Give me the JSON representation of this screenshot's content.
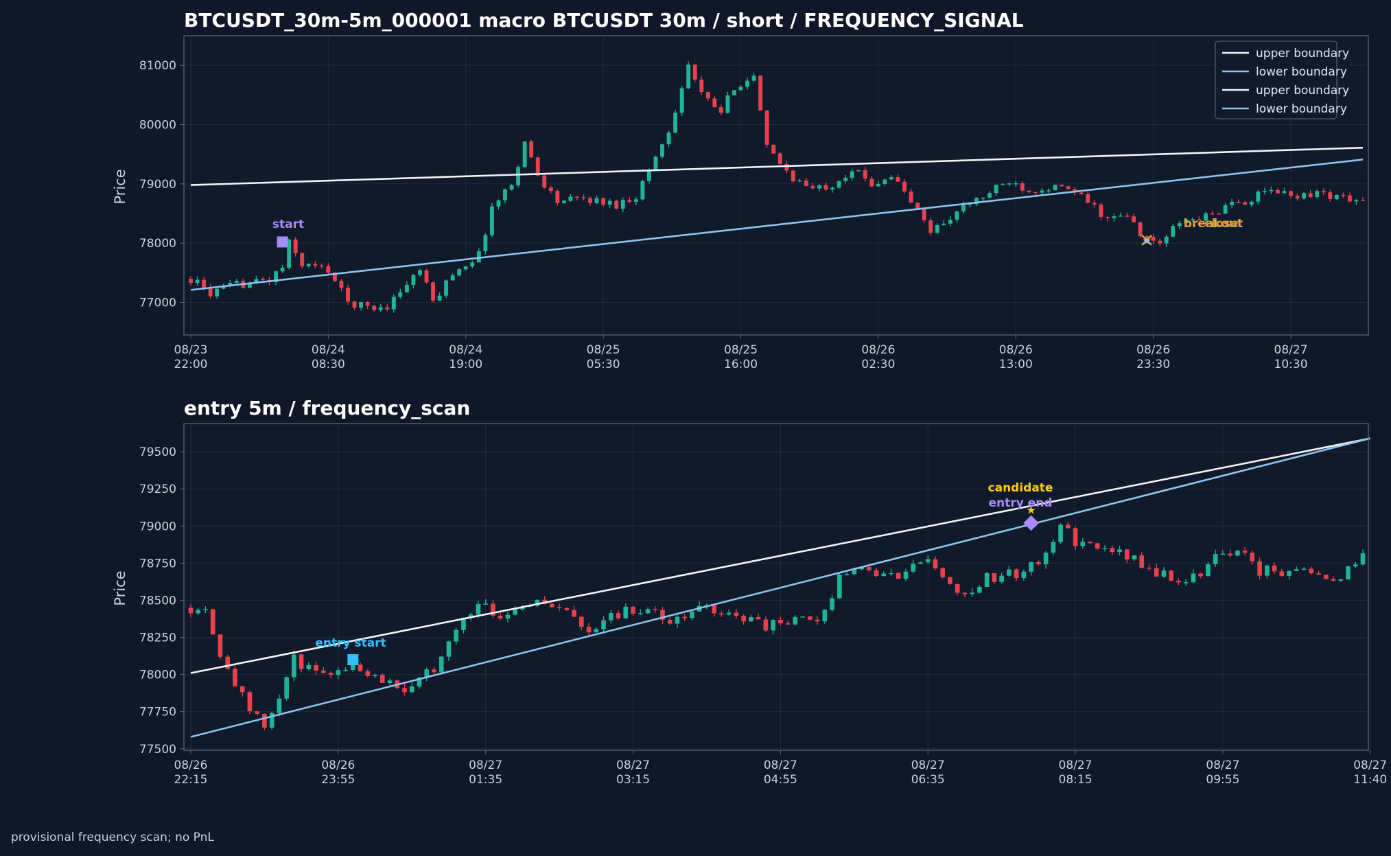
{
  "colors": {
    "background": "#0f1729",
    "plot_bg": "#111a2a",
    "grid": "#1f2a3c",
    "frame": "#5d6a7e",
    "up": "#1fb39a",
    "down": "#e5424d",
    "upper": "#f4f4f4",
    "lower": "#8ec3ef",
    "start": "#a78bfa",
    "entry_start": "#38bdf8",
    "candidate": "#facc15",
    "entry_end": "#a78bfa",
    "breakout": "#e8a33a"
  },
  "footer": "provisional frequency scan; no PnL",
  "chart_data": [
    {
      "type": "candlestick",
      "title": "BTCUSDT_30m-5m_000001 macro BTCUSDT 30m / short / FREQUENCY_SIGNAL",
      "ylabel": "Price",
      "ylim": [
        76450,
        81500
      ],
      "yticks": [
        77000,
        78000,
        79000,
        80000,
        81000
      ],
      "bars": 180,
      "xticks": [
        {
          "i": 0,
          "label": [
            "08/23",
            "22:00"
          ]
        },
        {
          "i": 21,
          "label": [
            "08/24",
            "08:30"
          ]
        },
        {
          "i": 42,
          "label": [
            "08/24",
            "19:00"
          ]
        },
        {
          "i": 63,
          "label": [
            "08/25",
            "05:30"
          ]
        },
        {
          "i": 84,
          "label": [
            "08/25",
            "16:00"
          ]
        },
        {
          "i": 105,
          "label": [
            "08/26",
            "02:30"
          ]
        },
        {
          "i": 126,
          "label": [
            "08/26",
            "13:00"
          ]
        },
        {
          "i": 147,
          "label": [
            "08/26",
            "23:30"
          ]
        },
        {
          "i": 168,
          "label": [
            "08/27",
            "10:30"
          ]
        }
      ],
      "anchors": [
        [
          0,
          77400
        ],
        [
          3,
          77150
        ],
        [
          7,
          77300
        ],
        [
          12,
          77380
        ],
        [
          14,
          77600
        ],
        [
          15,
          78000
        ],
        [
          17,
          77650
        ],
        [
          21,
          77550
        ],
        [
          24,
          77000
        ],
        [
          28,
          76900
        ],
        [
          30,
          76950
        ],
        [
          35,
          77550
        ],
        [
          37,
          77000
        ],
        [
          40,
          77500
        ],
        [
          44,
          77800
        ],
        [
          46,
          78600
        ],
        [
          49,
          79000
        ],
        [
          51,
          79700
        ],
        [
          53,
          79150
        ],
        [
          56,
          78700
        ],
        [
          60,
          78750
        ],
        [
          65,
          78650
        ],
        [
          68,
          78800
        ],
        [
          73,
          79900
        ],
        [
          76,
          81000
        ],
        [
          78,
          80500
        ],
        [
          81,
          80200
        ],
        [
          83,
          80650
        ],
        [
          86,
          80800
        ],
        [
          88,
          79600
        ],
        [
          92,
          79100
        ],
        [
          95,
          78900
        ],
        [
          98,
          79000
        ],
        [
          101,
          79250
        ],
        [
          104,
          79000
        ],
        [
          107,
          79150
        ],
        [
          110,
          78700
        ],
        [
          113,
          78200
        ],
        [
          118,
          78600
        ],
        [
          122,
          78850
        ],
        [
          125,
          79050
        ],
        [
          128,
          78900
        ],
        [
          131,
          78950
        ],
        [
          134,
          78900
        ],
        [
          137,
          78700
        ],
        [
          140,
          78400
        ],
        [
          143,
          78450
        ],
        [
          146,
          78050
        ],
        [
          148,
          78000
        ],
        [
          151,
          78350
        ],
        [
          155,
          78450
        ],
        [
          158,
          78600
        ],
        [
          162,
          78750
        ],
        [
          165,
          78900
        ],
        [
          168,
          78800
        ],
        [
          172,
          78850
        ],
        [
          179,
          78700
        ]
      ],
      "series": [
        {
          "name": "upper boundary",
          "line": [
            [
              0,
              78980
            ],
            [
              179,
              79610
            ]
          ]
        },
        {
          "name": "lower boundary",
          "line": [
            [
              0,
              77210
            ],
            [
              179,
              79410
            ]
          ]
        }
      ],
      "legend": {
        "placement": "top-right",
        "entries": [
          "upper boundary",
          "lower boundary",
          "upper boundary",
          "lower boundary"
        ]
      },
      "annotations": [
        {
          "text": "start",
          "i": 14,
          "price": 78020,
          "marker": "square",
          "color": "#a78bfa"
        },
        {
          "text": "breakout",
          "i": 146,
          "price": 78050,
          "marker": "x",
          "color": "#e8a33a"
        },
        {
          "text": "close",
          "i": 146,
          "price": 78050,
          "marker": "star",
          "color": "#8ec3ef"
        }
      ]
    },
    {
      "type": "candlestick",
      "title": "entry 5m / frequency_scan",
      "ylabel": "Price",
      "ylim": [
        77490,
        79690
      ],
      "yticks": [
        77500,
        77750,
        78000,
        78250,
        78500,
        78750,
        79000,
        79250,
        79500
      ],
      "bars": 200,
      "xticks": [
        {
          "i": 0,
          "label": [
            "08/26",
            "22:15"
          ]
        },
        {
          "i": 20,
          "label": [
            "08/26",
            "23:55"
          ]
        },
        {
          "i": 40,
          "label": [
            "08/27",
            "01:35"
          ]
        },
        {
          "i": 60,
          "label": [
            "08/27",
            "03:15"
          ]
        },
        {
          "i": 80,
          "label": [
            "08/27",
            "04:55"
          ]
        },
        {
          "i": 100,
          "label": [
            "08/27",
            "06:35"
          ]
        },
        {
          "i": 120,
          "label": [
            "08/27",
            "08:15"
          ]
        },
        {
          "i": 140,
          "label": [
            "08/27",
            "09:55"
          ]
        },
        {
          "i": 160,
          "label": [
            "08/27",
            "11:40"
          ]
        }
      ],
      "anchors": [
        [
          0,
          78450
        ],
        [
          2,
          78450
        ],
        [
          4,
          78150
        ],
        [
          6,
          77950
        ],
        [
          8,
          77750
        ],
        [
          10,
          77650
        ],
        [
          12,
          77850
        ],
        [
          14,
          78100
        ],
        [
          17,
          78000
        ],
        [
          20,
          78050
        ],
        [
          23,
          78050
        ],
        [
          27,
          77950
        ],
        [
          30,
          77900
        ],
        [
          33,
          78050
        ],
        [
          36,
          78300
        ],
        [
          39,
          78500
        ],
        [
          42,
          78400
        ],
        [
          46,
          78500
        ],
        [
          50,
          78450
        ],
        [
          54,
          78300
        ],
        [
          57,
          78400
        ],
        [
          61,
          78450
        ],
        [
          65,
          78350
        ],
        [
          70,
          78450
        ],
        [
          74,
          78400
        ],
        [
          78,
          78330
        ],
        [
          82,
          78350
        ],
        [
          86,
          78400
        ],
        [
          88,
          78700
        ],
        [
          92,
          78700
        ],
        [
          96,
          78650
        ],
        [
          100,
          78800
        ],
        [
          102,
          78650
        ],
        [
          105,
          78550
        ],
        [
          108,
          78650
        ],
        [
          112,
          78680
        ],
        [
          115,
          78750
        ],
        [
          118,
          79000
        ],
        [
          120,
          78900
        ],
        [
          123,
          78850
        ],
        [
          127,
          78800
        ],
        [
          130,
          78700
        ],
        [
          133,
          78650
        ],
        [
          136,
          78650
        ],
        [
          139,
          78800
        ],
        [
          142,
          78850
        ],
        [
          145,
          78700
        ],
        [
          148,
          78700
        ],
        [
          152,
          78700
        ],
        [
          156,
          78650
        ],
        [
          158,
          78750
        ],
        [
          161,
          78850
        ],
        [
          164,
          78800
        ],
        [
          167,
          78830
        ]
      ],
      "series": [
        {
          "name": "upper boundary",
          "line": [
            [
              0,
              78010
            ],
            [
              160,
              79590
            ]
          ]
        },
        {
          "name": "lower boundary",
          "line": [
            [
              0,
              77580
            ],
            [
              160,
              79590
            ]
          ]
        }
      ],
      "annotations": [
        {
          "text": "entry start",
          "i": 22,
          "price": 78100,
          "marker": "square",
          "color": "#38bdf8"
        },
        {
          "text": "candidate",
          "i": 114,
          "price": 79110,
          "marker": "star",
          "color": "#facc15"
        },
        {
          "text": "entry end",
          "i": 114,
          "price": 79020,
          "marker": "diamond",
          "color": "#a78bfa"
        }
      ]
    }
  ]
}
